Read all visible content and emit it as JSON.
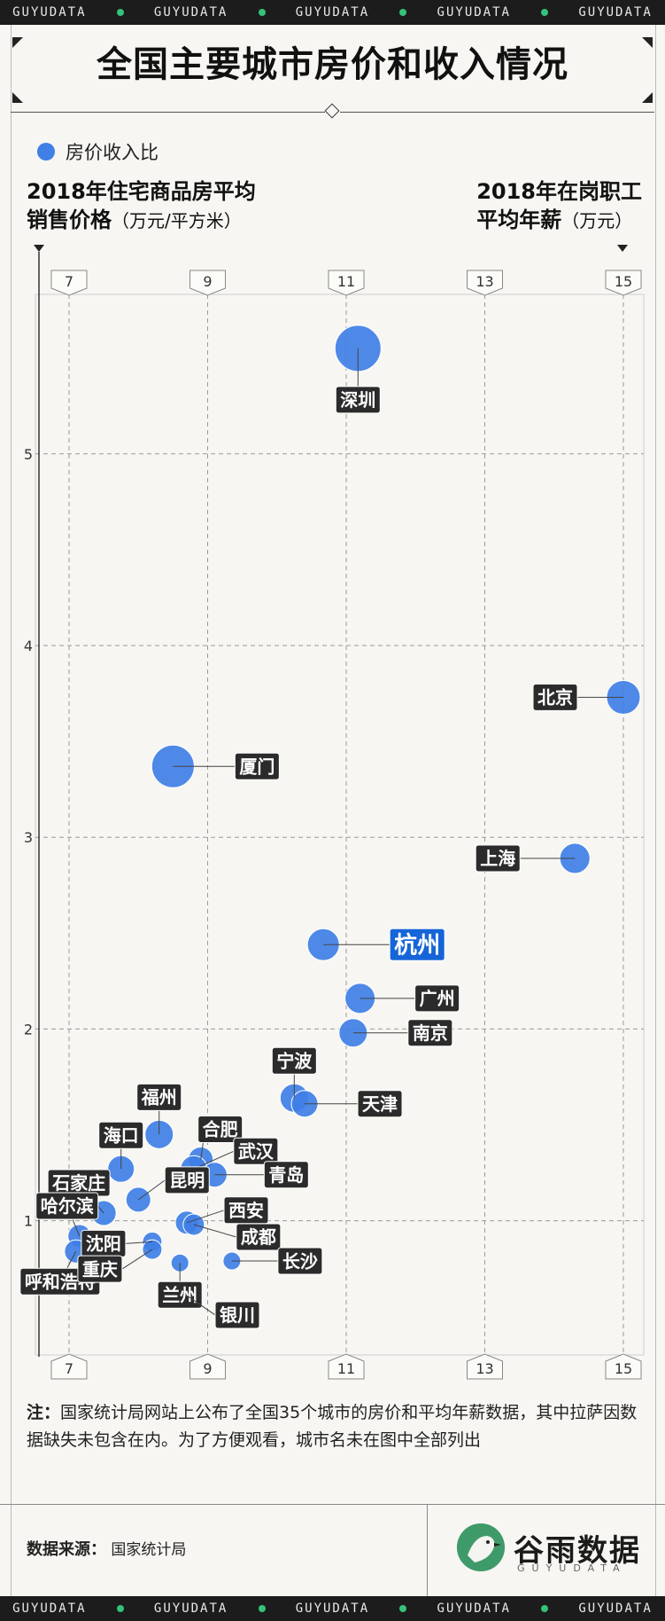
{
  "band": {
    "text": "GUYUDATA",
    "count": 5
  },
  "title": "全国主要城市房价和收入情况",
  "legend": {
    "label": "房价收入比"
  },
  "y_axis_title": {
    "main1": "2018年住宅商品房平均",
    "main2": "销售价格",
    "unit": "（万元/平方米）"
  },
  "x_axis_title": {
    "main1": "2018年在岗职工",
    "main2": "平均年薪",
    "unit": "（万元）"
  },
  "colors": {
    "bubble": "#3f7fe6",
    "label_bg": "#2b2b2b",
    "highlight_bg": "#1565d8",
    "band_dot": "#35c27a"
  },
  "chart_data": {
    "type": "scatter",
    "x_label": "2018年在岗职工平均年薪（万元）",
    "y_label": "2018年住宅商品房平均销售价格（万元/平方米）",
    "size_label": "房价收入比",
    "x_ticks": [
      7,
      9,
      11,
      13,
      15
    ],
    "y_ticks": [
      1,
      2,
      3,
      4,
      5
    ],
    "xlim": [
      7,
      15
    ],
    "ylim": [
      0.3,
      5.85
    ],
    "grid": true,
    "points": [
      {
        "city": "深圳",
        "x": 11.17,
        "y": 5.55,
        "r": 26
      },
      {
        "city": "北京",
        "x": 15.0,
        "y": 3.73,
        "r": 19
      },
      {
        "city": "厦门",
        "x": 8.5,
        "y": 3.37,
        "r": 24
      },
      {
        "city": "上海",
        "x": 14.3,
        "y": 2.89,
        "r": 17
      },
      {
        "city": "杭州",
        "x": 10.67,
        "y": 2.44,
        "r": 18,
        "highlight": true
      },
      {
        "city": "广州",
        "x": 11.2,
        "y": 2.16,
        "r": 17
      },
      {
        "city": "南京",
        "x": 11.1,
        "y": 1.98,
        "r": 16
      },
      {
        "city": "宁波",
        "x": 10.25,
        "y": 1.64,
        "r": 16
      },
      {
        "city": "天津",
        "x": 10.4,
        "y": 1.61,
        "r": 15
      },
      {
        "city": "福州",
        "x": 8.3,
        "y": 1.45,
        "r": 16
      },
      {
        "city": "合肥",
        "x": 8.9,
        "y": 1.32,
        "r": 14
      },
      {
        "city": "武汉",
        "x": 8.8,
        "y": 1.27,
        "r": 15
      },
      {
        "city": "海口",
        "x": 7.75,
        "y": 1.27,
        "r": 15
      },
      {
        "city": "青岛",
        "x": 9.1,
        "y": 1.24,
        "r": 14
      },
      {
        "city": "昆明",
        "x": 8.0,
        "y": 1.11,
        "r": 14
      },
      {
        "city": "石家庄",
        "x": 7.5,
        "y": 1.04,
        "r": 14
      },
      {
        "city": "西安",
        "x": 8.7,
        "y": 0.99,
        "r": 13
      },
      {
        "city": "成都",
        "x": 8.8,
        "y": 0.98,
        "r": 12
      },
      {
        "city": "哈尔滨",
        "x": 7.15,
        "y": 0.92,
        "r": 13
      },
      {
        "city": "沈阳",
        "x": 8.2,
        "y": 0.89,
        "r": 11
      },
      {
        "city": "呼和浩特",
        "x": 7.1,
        "y": 0.84,
        "r": 13
      },
      {
        "city": "重庆",
        "x": 8.2,
        "y": 0.85,
        "r": 11
      },
      {
        "city": "长沙",
        "x": 9.35,
        "y": 0.79,
        "r": 10
      },
      {
        "city": "兰州",
        "x": 8.6,
        "y": 0.78,
        "r": 10
      },
      {
        "city": "银川",
        "x": 8.7,
        "y": 0.61,
        "r": 5
      }
    ]
  },
  "note": {
    "prefix": "注：",
    "text": "国家统计局网站上公布了全国35个城市的房价和平均年薪数据，其中拉萨因数据缺失未包含在内。为了方便观看，城市名未在图中全部列出"
  },
  "source": {
    "label": "数据来源：",
    "value": "国家统计局"
  },
  "logo": {
    "name": "谷雨数据",
    "en": "GUYUDATA"
  }
}
